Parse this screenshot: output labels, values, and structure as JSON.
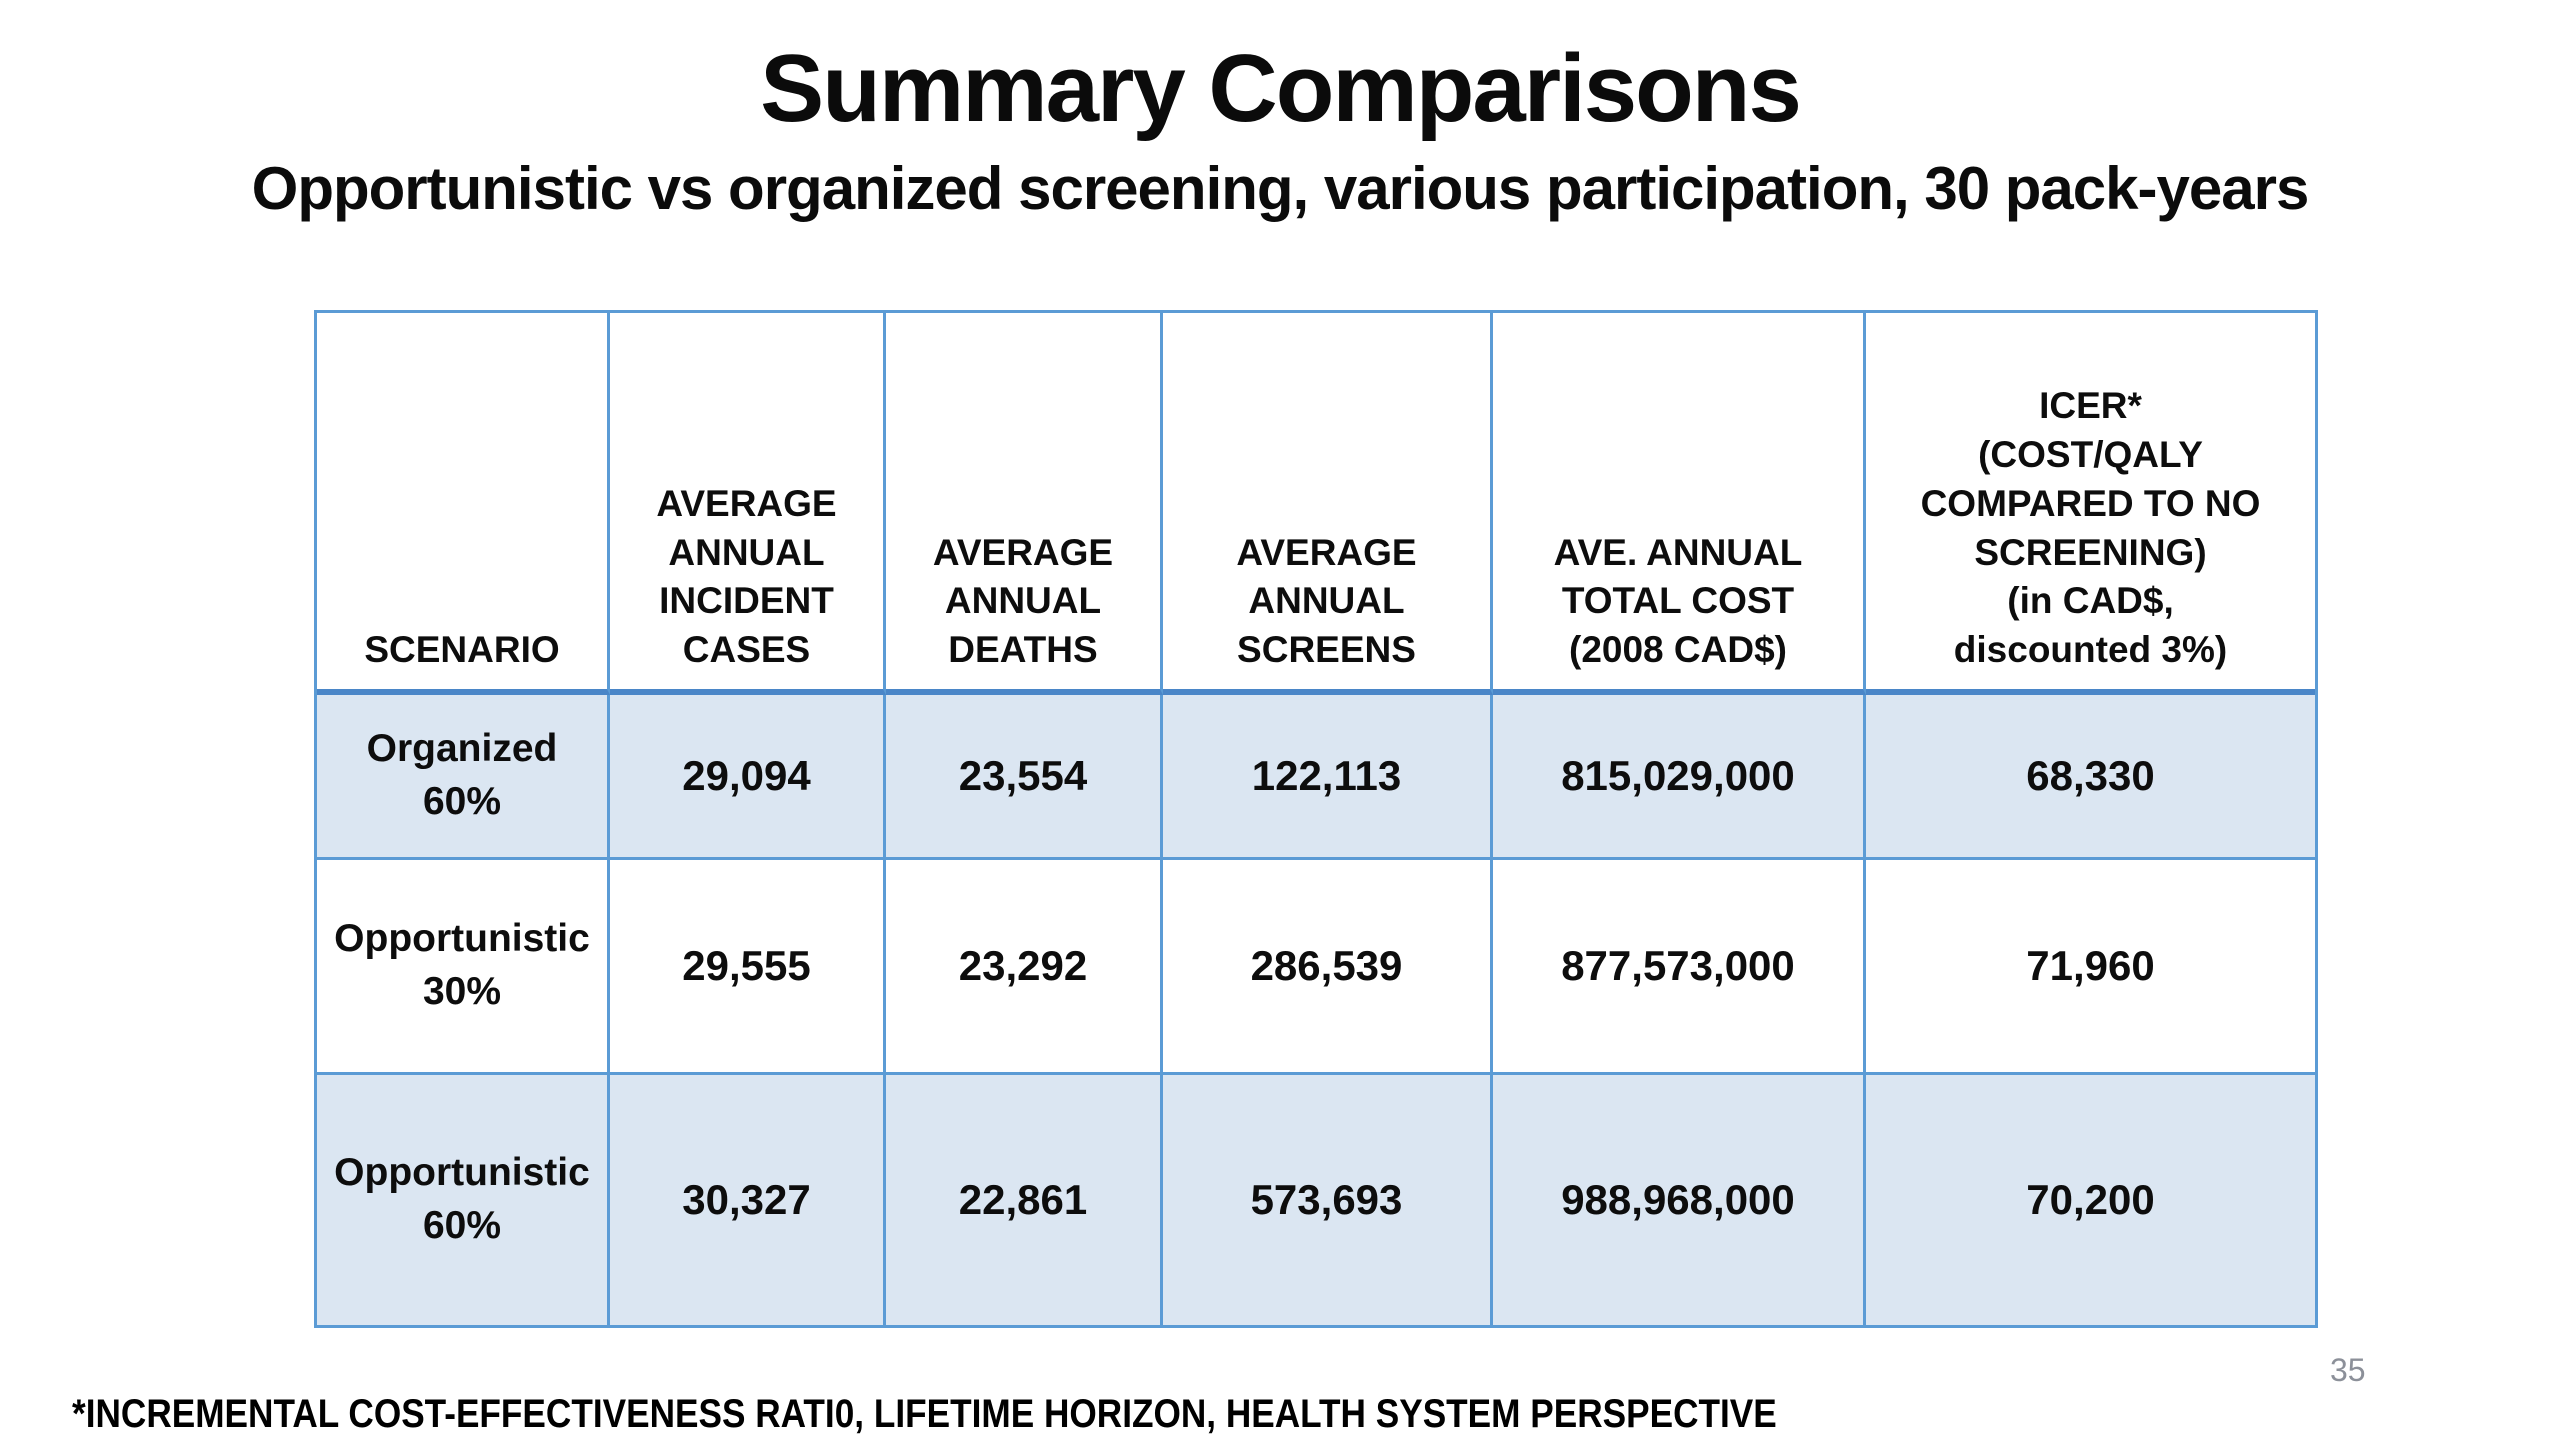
{
  "slide": {
    "title": "Summary Comparisons",
    "subtitle": "Opportunistic vs organized screening, various participation, 30 pack-years",
    "footnote": "*INCREMENTAL COST-EFFECTIVENESS RATI0, LIFETIME HORIZON, HEALTH SYSTEM PERSPECTIVE",
    "page_number": "35"
  },
  "colors": {
    "table_border_blue": "#5b9bd5",
    "table_header_separator_blue": "#4a86c8",
    "banded_row_fill": "#dbe6f2",
    "page_number_gray": "#8c9099",
    "text_black": "#0d0d0d"
  },
  "table": {
    "headers": [
      "SCENARIO",
      "AVERAGE\nANNUAL\nINCIDENT\nCASES",
      "AVERAGE\nANNUAL\nDEATHS",
      "AVERAGE\nANNUAL\nSCREENS",
      "AVE. ANNUAL\nTOTAL COST\n(2008 CAD$)",
      "ICER*\n(COST/QALY\nCOMPARED TO NO\nSCREENING)\n(in CAD$,\ndiscounted 3%)"
    ],
    "rows": [
      {
        "scenario": "Organized\n60%",
        "incident_cases": "29,094",
        "deaths": "23,554",
        "screens": "122,113",
        "total_cost": "815,029,000",
        "icer": "68,330"
      },
      {
        "scenario": "Opportunistic\n30%",
        "incident_cases": "29,555",
        "deaths": "23,292",
        "screens": "286,539",
        "total_cost": "877,573,000",
        "icer": "71,960"
      },
      {
        "scenario": "Opportunistic\n60%",
        "incident_cases": "30,327",
        "deaths": "22,861",
        "screens": "573,693",
        "total_cost": "988,968,000",
        "icer": "70,200"
      }
    ]
  }
}
